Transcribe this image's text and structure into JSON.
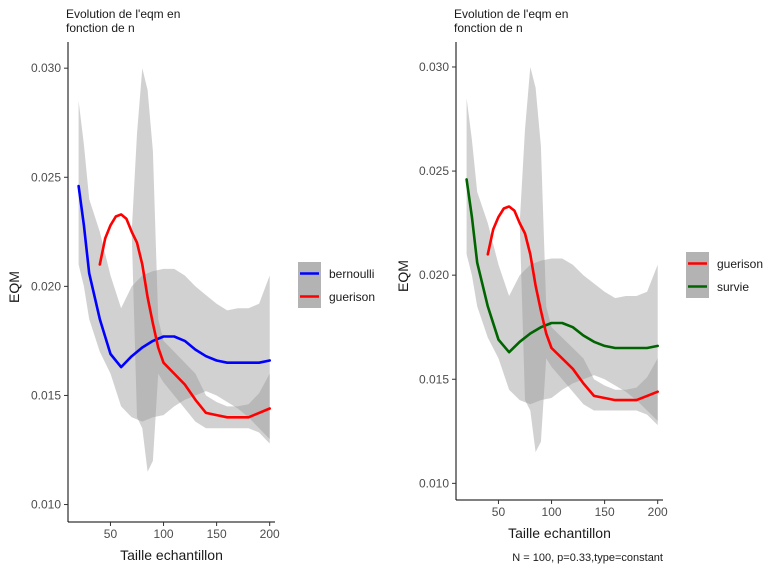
{
  "caption": "N = 100, p=0.33,type=constant",
  "chart_data": [
    {
      "type": "line",
      "title": "Evolution de l'eqm en\nfonction de n",
      "xlabel": "Taille echantillon",
      "ylabel": "EQM",
      "xlim": [
        10,
        205
      ],
      "ylim": [
        0.0092,
        0.0312
      ],
      "xticks": [
        50,
        100,
        150,
        200
      ],
      "yticks": [
        0.01,
        0.015,
        0.02,
        0.025,
        0.03
      ],
      "grid": false,
      "legend_position": "right",
      "legend": [
        "bernoulli",
        "guerison"
      ],
      "series": [
        {
          "name": "bernoulli",
          "color": "#0000FF",
          "x": [
            20,
            25,
            30,
            40,
            50,
            60,
            70,
            80,
            90,
            100,
            110,
            120,
            130,
            140,
            150,
            160,
            170,
            180,
            190,
            200
          ],
          "y": [
            0.0246,
            0.0228,
            0.0206,
            0.0185,
            0.0169,
            0.0163,
            0.0168,
            0.0172,
            0.0175,
            0.0177,
            0.0177,
            0.0175,
            0.0171,
            0.0168,
            0.0166,
            0.0165,
            0.0165,
            0.0165,
            0.0165,
            0.0166
          ],
          "lower": [
            0.021,
            0.02,
            0.0185,
            0.017,
            0.016,
            0.0145,
            0.014,
            0.0138,
            0.014,
            0.0141,
            0.0145,
            0.0148,
            0.015,
            0.0152,
            0.015,
            0.0147,
            0.0144,
            0.014,
            0.0135,
            0.013
          ],
          "upper": [
            0.0285,
            0.0265,
            0.024,
            0.0225,
            0.0205,
            0.019,
            0.02,
            0.0205,
            0.0207,
            0.0208,
            0.0208,
            0.0205,
            0.02,
            0.0196,
            0.0192,
            0.0189,
            0.019,
            0.019,
            0.0192,
            0.0205
          ]
        },
        {
          "name": "guerison",
          "color": "#FF0000",
          "x": [
            40,
            45,
            50,
            55,
            60,
            65,
            70,
            75,
            80,
            85,
            90,
            95,
            100,
            110,
            120,
            130,
            140,
            150,
            160,
            170,
            180,
            190,
            200
          ],
          "y": [
            0.021,
            0.0222,
            0.0228,
            0.0232,
            0.0233,
            0.0231,
            0.0225,
            0.022,
            0.021,
            0.0195,
            0.0183,
            0.0172,
            0.0165,
            0.016,
            0.0155,
            0.0148,
            0.0142,
            0.0141,
            0.014,
            0.014,
            0.014,
            0.0142,
            0.0144
          ],
          "lower": [
            0.021,
            0.0222,
            0.0228,
            0.0232,
            0.0233,
            0.0231,
            0.0225,
            0.014,
            0.0135,
            0.0115,
            0.012,
            0.016,
            0.0156,
            0.015,
            0.0144,
            0.0138,
            0.0135,
            0.0135,
            0.0135,
            0.0135,
            0.0135,
            0.0133,
            0.0128
          ],
          "upper": [
            0.021,
            0.0222,
            0.0228,
            0.0232,
            0.0233,
            0.0231,
            0.0225,
            0.027,
            0.03,
            0.029,
            0.0262,
            0.0185,
            0.0175,
            0.017,
            0.0165,
            0.016,
            0.015,
            0.0147,
            0.0145,
            0.0145,
            0.0146,
            0.0151,
            0.016
          ]
        }
      ]
    },
    {
      "type": "line",
      "title": "Evolution de l'eqm en\nfonction de n",
      "xlabel": "Taille echantillon",
      "ylabel": "EQM",
      "xlim": [
        10,
        205
      ],
      "ylim": [
        0.0092,
        0.0312
      ],
      "xticks": [
        50,
        100,
        150,
        200
      ],
      "yticks": [
        0.01,
        0.015,
        0.02,
        0.025,
        0.03
      ],
      "grid": false,
      "legend_position": "right",
      "legend": [
        "guerison",
        "survie"
      ],
      "series": [
        {
          "name": "survie",
          "color": "#006400",
          "x": [
            20,
            25,
            30,
            40,
            50,
            60,
            70,
            80,
            90,
            100,
            110,
            120,
            130,
            140,
            150,
            160,
            170,
            180,
            190,
            200
          ],
          "y": [
            0.0246,
            0.0228,
            0.0206,
            0.0185,
            0.0169,
            0.0163,
            0.0168,
            0.0172,
            0.0175,
            0.0177,
            0.0177,
            0.0175,
            0.0171,
            0.0168,
            0.0166,
            0.0165,
            0.0165,
            0.0165,
            0.0165,
            0.0166
          ],
          "lower": [
            0.021,
            0.02,
            0.0185,
            0.017,
            0.016,
            0.0145,
            0.014,
            0.0138,
            0.014,
            0.0141,
            0.0145,
            0.0148,
            0.015,
            0.0152,
            0.015,
            0.0147,
            0.0144,
            0.014,
            0.0135,
            0.013
          ],
          "upper": [
            0.0285,
            0.0265,
            0.024,
            0.0225,
            0.0205,
            0.019,
            0.02,
            0.0205,
            0.0207,
            0.0208,
            0.0208,
            0.0205,
            0.02,
            0.0196,
            0.0192,
            0.0189,
            0.019,
            0.019,
            0.0192,
            0.0205
          ]
        },
        {
          "name": "guerison",
          "color": "#FF0000",
          "x": [
            40,
            45,
            50,
            55,
            60,
            65,
            70,
            75,
            80,
            85,
            90,
            95,
            100,
            110,
            120,
            130,
            140,
            150,
            160,
            170,
            180,
            190,
            200
          ],
          "y": [
            0.021,
            0.0222,
            0.0228,
            0.0232,
            0.0233,
            0.0231,
            0.0225,
            0.022,
            0.021,
            0.0195,
            0.0183,
            0.0172,
            0.0165,
            0.016,
            0.0155,
            0.0148,
            0.0142,
            0.0141,
            0.014,
            0.014,
            0.014,
            0.0142,
            0.0144
          ],
          "lower": [
            0.021,
            0.0222,
            0.0228,
            0.0232,
            0.0233,
            0.0231,
            0.0225,
            0.014,
            0.0135,
            0.0115,
            0.012,
            0.016,
            0.0156,
            0.015,
            0.0144,
            0.0138,
            0.0135,
            0.0135,
            0.0135,
            0.0135,
            0.0135,
            0.0133,
            0.0128
          ],
          "upper": [
            0.021,
            0.0222,
            0.0228,
            0.0232,
            0.0233,
            0.0231,
            0.0225,
            0.027,
            0.03,
            0.029,
            0.0262,
            0.0185,
            0.0175,
            0.017,
            0.0165,
            0.016,
            0.015,
            0.0147,
            0.0145,
            0.0145,
            0.0146,
            0.0151,
            0.016
          ]
        }
      ]
    }
  ]
}
